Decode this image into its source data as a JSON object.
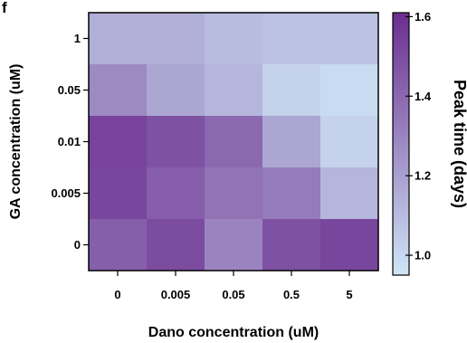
{
  "panel_label": "f",
  "chart_data": {
    "type": "heatmap",
    "xlabel": "Dano concentration (uM)",
    "ylabel": "GA concentration (uM)",
    "x_categories": [
      "0",
      "0.005",
      "0.05",
      "0.5",
      "5"
    ],
    "y_categories": [
      "1",
      "0.05",
      "0.01",
      "0.005",
      "0"
    ],
    "values": [
      [
        1.15,
        1.15,
        1.1,
        1.08,
        1.08
      ],
      [
        1.28,
        1.18,
        1.12,
        1.02,
        0.99
      ],
      [
        1.53,
        1.48,
        1.4,
        1.18,
        1.02
      ],
      [
        1.52,
        1.44,
        1.36,
        1.33,
        1.12
      ],
      [
        1.43,
        1.5,
        1.3,
        1.48,
        1.52
      ]
    ],
    "colorbar": {
      "label": "Peak time (days)",
      "range": [
        0.95,
        1.61
      ],
      "ticks": [
        "1.0",
        "1.2",
        "1.4",
        "1.6"
      ],
      "tick_values": [
        1.0,
        1.2,
        1.4,
        1.6
      ],
      "color_low": "#cfe6f7",
      "color_high": "#6b2d8f"
    }
  }
}
